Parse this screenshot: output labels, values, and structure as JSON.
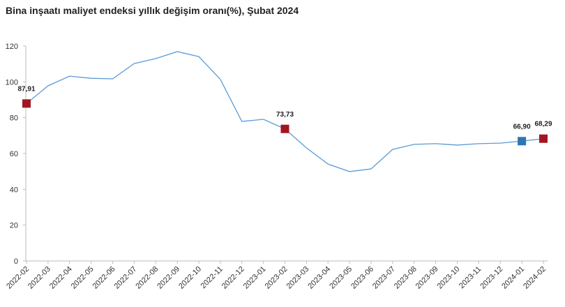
{
  "chart_data": {
    "type": "line",
    "title": "Bina inşaatı maliyet endeksi yıllık değişim oranı(%), Şubat 2024",
    "categories": [
      "2022-02",
      "2022-03",
      "2022-04",
      "2022-05",
      "2022-06",
      "2022-07",
      "2022-08",
      "2022-09",
      "2022-10",
      "2022-11",
      "2022-12",
      "2023-01",
      "2023-02",
      "2023-03",
      "2023-04",
      "2023-05",
      "2023-06",
      "2023-07",
      "2023-08",
      "2023-09",
      "2023-10",
      "2023-11",
      "2023-12",
      "2024-01",
      "2024-02"
    ],
    "series": [
      {
        "color": "#5b9bd5",
        "values": [
          87.91,
          97.8,
          103.2,
          102,
          101.7,
          110.2,
          113,
          116.9,
          114.1,
          101.4,
          77.9,
          79.1,
          73.73,
          63.1,
          54.1,
          49.9,
          51.4,
          62.3,
          65.1,
          65.5,
          64.7,
          65.5,
          65.8,
          66.9,
          68.29
        ],
        "value_labels": [
          "87,91",
          null,
          null,
          null,
          null,
          null,
          null,
          null,
          null,
          null,
          null,
          null,
          "73,73",
          null,
          null,
          null,
          null,
          null,
          null,
          null,
          null,
          null,
          null,
          "66,90",
          "68,29"
        ],
        "marker_colors": [
          "#a31621",
          null,
          null,
          null,
          null,
          null,
          null,
          null,
          null,
          null,
          null,
          null,
          "#a31621",
          null,
          null,
          null,
          null,
          null,
          null,
          null,
          null,
          null,
          null,
          "#2e75b6",
          "#a31621"
        ]
      }
    ],
    "ylim": [
      0,
      120
    ],
    "yticks": [
      0,
      20,
      40,
      60,
      80,
      100,
      120
    ],
    "grid": false
  }
}
